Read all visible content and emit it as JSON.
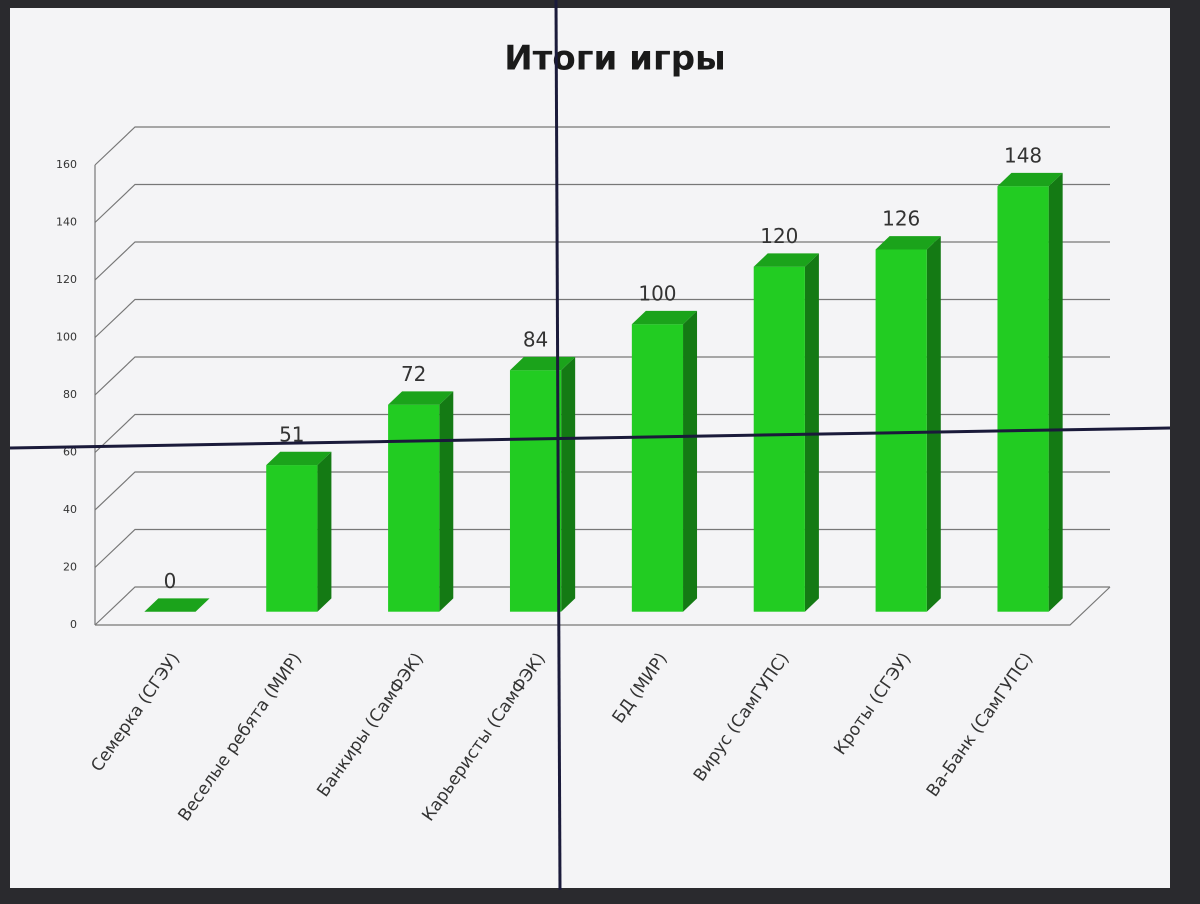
{
  "chart_data": {
    "type": "bar3d",
    "title": "Итоги игры",
    "categories": [
      "Семерка (СГЭУ)",
      "Веселые ребята (МИР)",
      "Банкиры (СамФЭК)",
      "Карьеристы (СамФЭК)",
      "БД (МИР)",
      "Вирус (СамГУПС)",
      "Кроты (СГЭУ)",
      "Ва-Банк (СамГУПС)"
    ],
    "values": [
      0,
      51,
      72,
      84,
      100,
      120,
      126,
      148
    ],
    "color": "#22cc22",
    "ylim": [
      0,
      160
    ],
    "yticks": [
      0,
      20,
      40,
      60,
      80,
      100,
      120,
      140,
      160
    ],
    "grid": true
  }
}
